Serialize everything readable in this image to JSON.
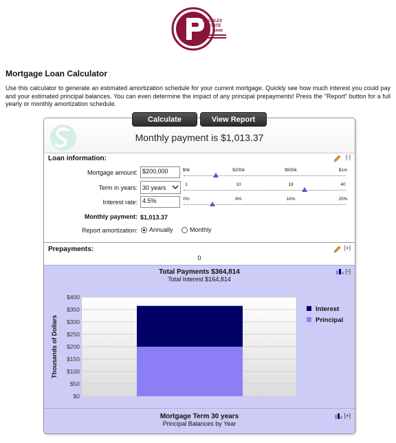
{
  "logo": {
    "text_lines": [
      "PEOPLES",
      "STATE",
      "BANK"
    ],
    "color": "#8a1538"
  },
  "page_title": "Mortgage Loan Calculator",
  "intro": "Use this calculator to generate an estimated amortization schedule for your current mortgage. Quickly see how much interest you could pay and your estimated principal balances. You can even determine the impact of any principal prepayments! Press the \"Report\" button for a full yearly or monthly amortization schedule.",
  "buttons": {
    "calculate": "Calculate",
    "view_report": "View Report"
  },
  "header": {
    "monthly_payment_text": "Monthly payment is $1,013.37"
  },
  "loan_info": {
    "title": "Loan information:",
    "toggle": "[-]",
    "mortgage_amount_label": "Mortgage amount:",
    "mortgage_amount_value": "$200,000",
    "mortgage_slider": {
      "ticks": [
        "$0k",
        "$200k",
        "$500k",
        "$1m"
      ],
      "value_fraction": 0.2
    },
    "term_label": "Term in years:",
    "term_value": "30 years",
    "term_slider": {
      "ticks": [
        "1",
        "10",
        "19",
        "40"
      ],
      "value_fraction": 0.744
    },
    "rate_label": "Interest rate:",
    "rate_value": "4.5%",
    "rate_slider": {
      "ticks": [
        "0%",
        "8%",
        "16%",
        "25%"
      ],
      "value_fraction": 0.18
    },
    "monthly_payment_label": "Monthly payment:",
    "monthly_payment_value": "$1,013.37",
    "report_label": "Report amortization:",
    "report_options": [
      "Annually",
      "Monthly"
    ],
    "report_selected": "Annually"
  },
  "prepayments": {
    "title": "Prepayments:",
    "toggle": "[+]",
    "count": "0"
  },
  "chart_section": {
    "title": "Total Payments $364,814",
    "subtitle": "Total Interest $164,814",
    "toggle": "[-]"
  },
  "chart_data": {
    "type": "bar",
    "stacked": true,
    "categories": [
      ""
    ],
    "series": [
      {
        "name": "Principal",
        "values": [
          200
        ],
        "color": "#8c7ff5"
      },
      {
        "name": "Interest",
        "values": [
          164.814
        ],
        "color": "#000066"
      }
    ],
    "ylabel": "Thousands of Dollars",
    "ylim": [
      0,
      400
    ],
    "yticks": [
      "$0",
      "$50",
      "$100",
      "$150",
      "$200",
      "$250",
      "$300",
      "$350",
      "$400"
    ],
    "grid": true,
    "legend": [
      "Interest",
      "Principal"
    ],
    "legend_position": "right"
  },
  "term_section": {
    "title": "Mortgage Term 30 years",
    "subtitle": "Principal Balances by Year",
    "toggle": "[+]"
  },
  "colors": {
    "panel_bg": "#ccccf6",
    "button_bg": "#333333",
    "slider_thumb": "#5058c8"
  }
}
